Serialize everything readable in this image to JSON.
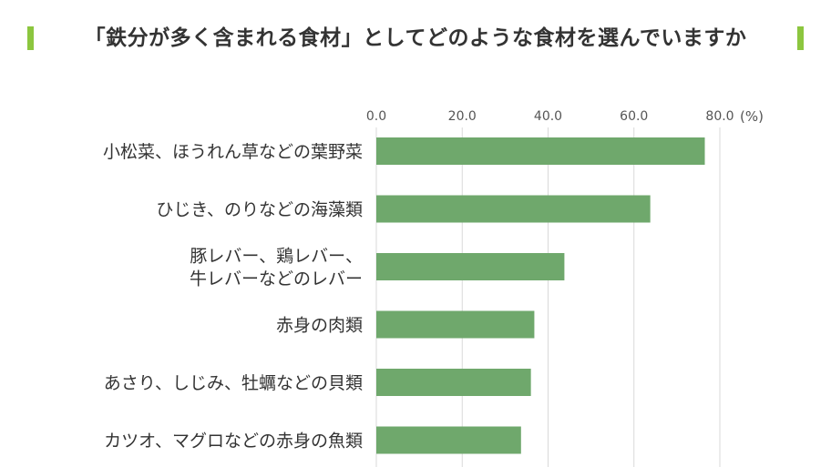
{
  "title": "「鉄分が多く含まれる食材」としてどのような食材を選んでいますか",
  "chart_data": {
    "type": "bar",
    "orientation": "horizontal",
    "title": "「鉄分が多く含まれる食材」としてどのような食材を選んでいますか",
    "unit": "(%)",
    "categories": [
      [
        "小松菜、ほうれん草などの葉野菜"
      ],
      [
        "ひじき、のりなどの海藻類"
      ],
      [
        "豚レバー、鶏レバー、",
        "牛レバーなどのレバー"
      ],
      [
        "赤身の肉類"
      ],
      [
        "あさり、しじみ、牡蠣などの貝類"
      ],
      [
        "カツオ、マグロなどの赤身の魚類"
      ]
    ],
    "values": [
      76.5,
      63.8,
      43.8,
      36.8,
      36.0,
      33.7
    ],
    "xlim": [
      0,
      80
    ],
    "ticks": [
      0,
      20,
      40,
      60,
      80
    ],
    "tick_labels": [
      "0.0",
      "20.0",
      "40.0",
      "60.0",
      "80.0"
    ],
    "xaxis_position": "top",
    "grid": true,
    "bar_color": "#6fa86c",
    "grid_color": "#d9d9d9"
  }
}
